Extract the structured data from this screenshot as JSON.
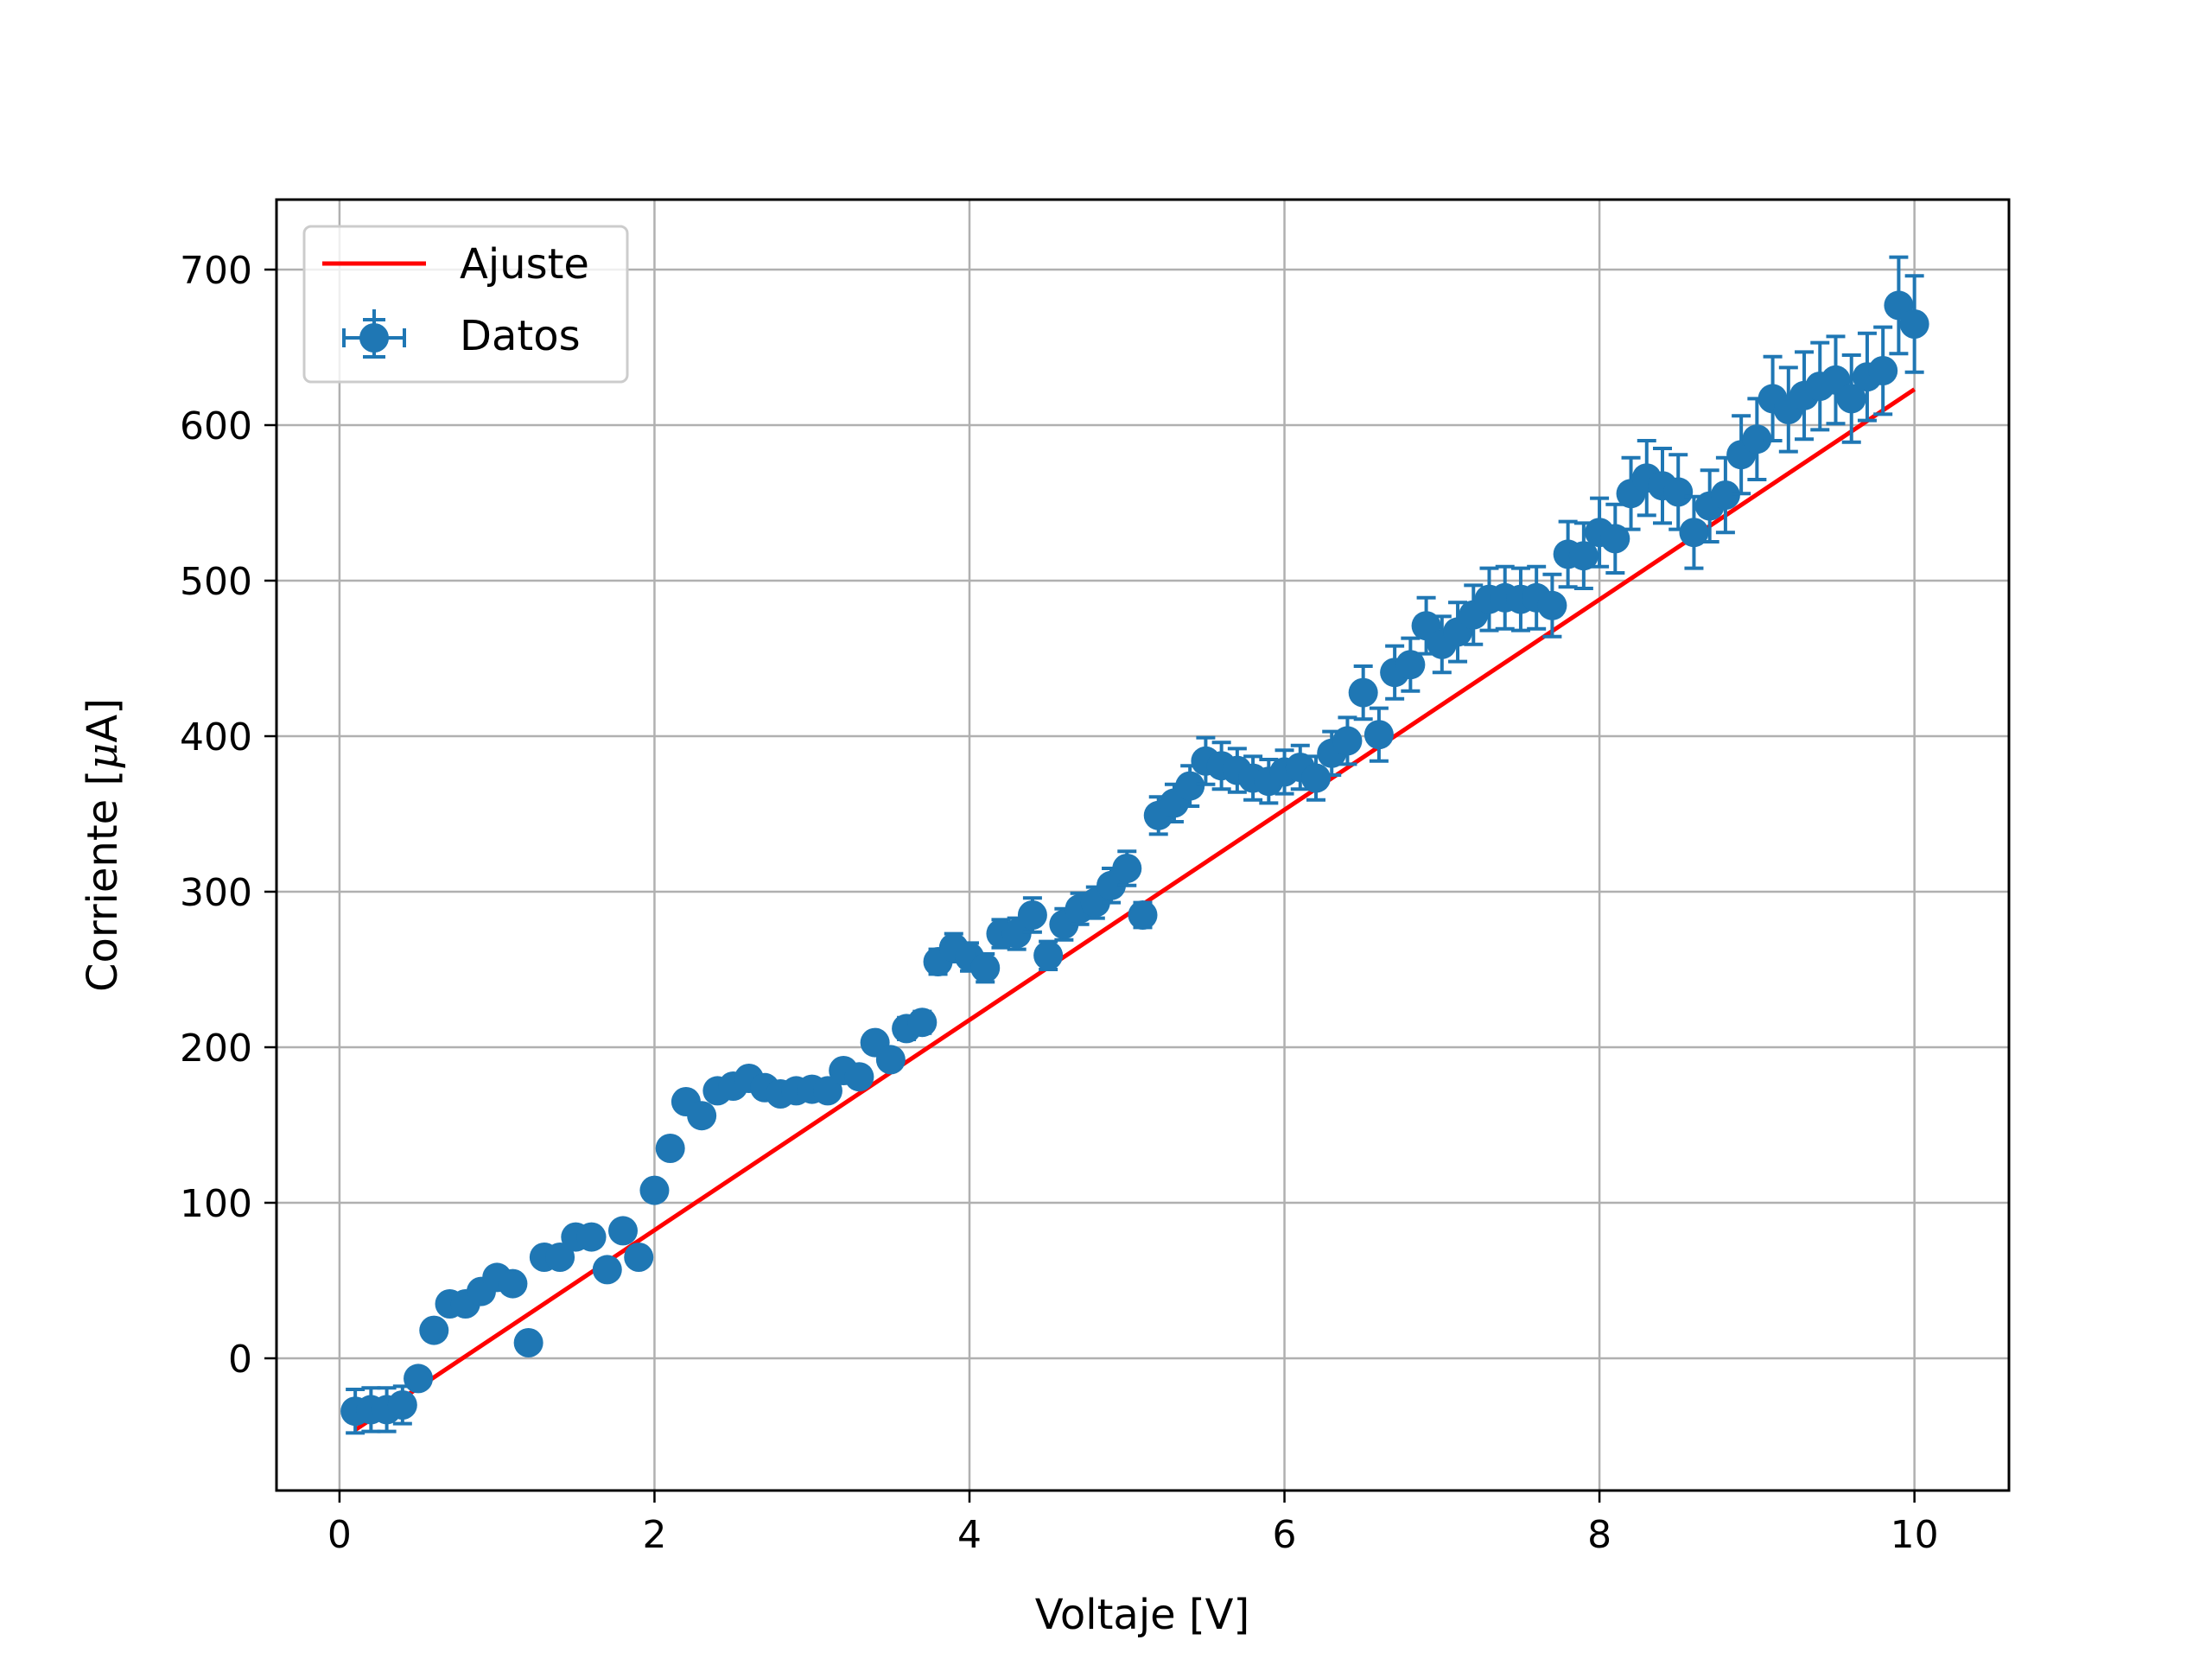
{
  "chart_data": {
    "type": "scatter",
    "title": "",
    "xlabel": "Voltaje [V]",
    "ylabel_prefix": "Corriente [",
    "ylabel_mu": "μ",
    "ylabel_suffix": "A]",
    "xlim": [
      -0.4,
      10.6
    ],
    "ylim": [
      -85,
      745
    ],
    "xticks": [
      0,
      2,
      4,
      6,
      8,
      10
    ],
    "yticks": [
      0,
      100,
      200,
      300,
      400,
      500,
      600,
      700
    ],
    "grid": true,
    "legend_position": "upper-left",
    "colors": {
      "data": "#1f77b4",
      "fit": "#ff0000",
      "grid": "#b0b0b0",
      "axes": "#000000"
    },
    "series": [
      {
        "name": "Datos",
        "kind": "errorbar",
        "points": [
          [
            0.1,
            -34,
            14
          ],
          [
            0.2,
            -33,
            14
          ],
          [
            0.3,
            -33,
            14
          ],
          [
            0.4,
            -30,
            12
          ],
          [
            0.5,
            -13,
            4
          ],
          [
            0.6,
            18,
            3
          ],
          [
            0.7,
            35,
            3
          ],
          [
            0.8,
            35,
            3
          ],
          [
            0.9,
            43,
            3
          ],
          [
            1.0,
            52,
            3
          ],
          [
            1.1,
            48,
            3
          ],
          [
            1.2,
            10,
            3
          ],
          [
            1.3,
            65,
            3
          ],
          [
            1.4,
            65,
            3
          ],
          [
            1.5,
            78,
            3
          ],
          [
            1.6,
            78,
            3
          ],
          [
            1.7,
            57,
            3
          ],
          [
            1.8,
            82,
            3
          ],
          [
            1.9,
            65,
            3
          ],
          [
            2.0,
            108,
            3
          ],
          [
            2.1,
            135,
            3
          ],
          [
            2.2,
            165,
            3
          ],
          [
            2.3,
            156,
            3
          ],
          [
            2.4,
            172,
            3
          ],
          [
            2.5,
            175,
            3
          ],
          [
            2.6,
            180,
            3
          ],
          [
            2.7,
            174,
            3
          ],
          [
            2.8,
            170,
            3
          ],
          [
            2.9,
            172,
            3
          ],
          [
            3.0,
            173,
            3
          ],
          [
            3.1,
            172,
            3
          ],
          [
            3.2,
            185,
            4
          ],
          [
            3.3,
            181,
            4
          ],
          [
            3.4,
            203,
            6
          ],
          [
            3.5,
            192,
            6
          ],
          [
            3.6,
            212,
            7
          ],
          [
            3.7,
            216,
            7
          ],
          [
            3.8,
            255,
            8
          ],
          [
            3.9,
            264,
            9
          ],
          [
            4.0,
            258,
            9
          ],
          [
            4.1,
            251,
            9
          ],
          [
            4.2,
            273,
            9
          ],
          [
            4.3,
            273,
            10
          ],
          [
            4.4,
            285,
            11
          ],
          [
            4.5,
            259,
            9
          ],
          [
            4.6,
            279,
            10
          ],
          [
            4.7,
            289,
            10
          ],
          [
            4.8,
            293,
            10
          ],
          [
            4.9,
            304,
            11
          ],
          [
            5.0,
            315,
            11
          ],
          [
            5.1,
            285,
            8
          ],
          [
            5.2,
            349,
            12
          ],
          [
            5.3,
            357,
            12
          ],
          [
            5.4,
            368,
            13
          ],
          [
            5.5,
            384,
            15
          ],
          [
            5.6,
            381,
            15
          ],
          [
            5.7,
            378,
            14
          ],
          [
            5.8,
            373,
            14
          ],
          [
            5.9,
            371,
            14
          ],
          [
            6.0,
            377,
            14
          ],
          [
            6.1,
            380,
            14
          ],
          [
            6.2,
            373,
            14
          ],
          [
            6.3,
            389,
            14
          ],
          [
            6.4,
            397,
            15
          ],
          [
            6.5,
            428,
            17
          ],
          [
            6.6,
            401,
            17
          ],
          [
            6.7,
            441,
            17
          ],
          [
            6.8,
            446,
            17
          ],
          [
            6.9,
            471,
            18
          ],
          [
            7.0,
            459,
            18
          ],
          [
            7.1,
            467,
            19
          ],
          [
            7.2,
            478,
            19
          ],
          [
            7.3,
            488,
            20
          ],
          [
            7.4,
            489,
            20
          ],
          [
            7.5,
            488,
            20
          ],
          [
            7.6,
            489,
            20
          ],
          [
            7.7,
            484,
            20
          ],
          [
            7.8,
            517,
            21
          ],
          [
            7.9,
            516,
            21
          ],
          [
            8.0,
            531,
            22
          ],
          [
            8.1,
            527,
            22
          ],
          [
            8.2,
            556,
            23
          ],
          [
            8.3,
            566,
            24
          ],
          [
            8.4,
            561,
            24
          ],
          [
            8.5,
            557,
            24
          ],
          [
            8.6,
            531,
            23
          ],
          [
            8.7,
            548,
            23
          ],
          [
            8.8,
            555,
            24
          ],
          [
            8.9,
            581,
            25
          ],
          [
            9.0,
            591,
            26
          ],
          [
            9.1,
            617,
            27
          ],
          [
            9.2,
            610,
            27
          ],
          [
            9.3,
            619,
            28
          ],
          [
            9.4,
            625,
            28
          ],
          [
            9.5,
            629,
            28
          ],
          [
            9.6,
            617,
            28
          ],
          [
            9.7,
            631,
            28
          ],
          [
            9.8,
            635,
            28
          ],
          [
            9.9,
            677,
            31
          ],
          [
            10.0,
            665,
            31
          ]
        ],
        "xerr": 0.05
      },
      {
        "name": "Ajuste",
        "kind": "line",
        "x": [
          0.1,
          10.0
        ],
        "y": [
          -46,
          623
        ]
      }
    ]
  }
}
